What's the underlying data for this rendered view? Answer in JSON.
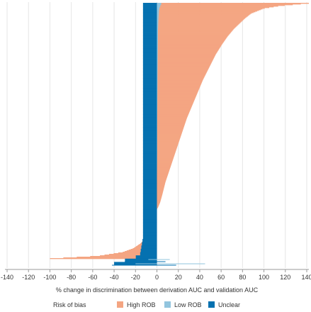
{
  "chart_data": {
    "type": "bar",
    "orientation": "horizontal",
    "sorted": "descending",
    "xlabel": "% change in discrimination between derivation AUC and validation AUC",
    "ylabel": "",
    "xlim": [
      -142,
      142
    ],
    "x_ticks": [
      -140,
      -120,
      -100,
      -80,
      -60,
      -40,
      -20,
      0,
      20,
      40,
      60,
      80,
      100,
      120,
      140
    ],
    "grid": "vertical",
    "legend": {
      "title": "Risk of bias",
      "placement": "bottom"
    },
    "series": [
      {
        "name": "High ROB",
        "color": "#f4a582",
        "profile": [
          [
            0.0,
            142
          ],
          [
            0.01,
            115
          ],
          [
            0.02,
            100
          ],
          [
            0.04,
            88
          ],
          [
            0.06,
            82
          ],
          [
            0.08,
            77
          ],
          [
            0.1,
            72
          ],
          [
            0.13,
            66
          ],
          [
            0.16,
            61
          ],
          [
            0.2,
            55
          ],
          [
            0.25,
            49
          ],
          [
            0.3,
            43
          ],
          [
            0.35,
            38
          ],
          [
            0.4,
            33
          ],
          [
            0.45,
            28
          ],
          [
            0.5,
            24
          ],
          [
            0.55,
            20
          ],
          [
            0.6,
            16
          ],
          [
            0.65,
            12
          ],
          [
            0.7,
            8
          ],
          [
            0.75,
            5
          ],
          [
            0.78,
            3
          ],
          [
            0.8,
            1
          ],
          [
            0.81,
            -1
          ],
          [
            0.83,
            -3
          ],
          [
            0.86,
            -5
          ],
          [
            0.89,
            -8
          ],
          [
            0.92,
            -11
          ],
          [
            0.94,
            -15
          ],
          [
            0.96,
            -22
          ],
          [
            0.975,
            -32
          ],
          [
            0.99,
            -55
          ],
          [
            1.0,
            -100
          ]
        ]
      },
      {
        "name": "Low ROB",
        "color": "#92c5de",
        "profile": [
          [
            0.0,
            4
          ],
          [
            0.02,
            2
          ],
          [
            0.05,
            1.5
          ],
          [
            0.1,
            1
          ],
          [
            0.3,
            0.6
          ],
          [
            0.5,
            0.2
          ],
          [
            0.7,
            -0.3
          ],
          [
            0.8,
            -0.6
          ],
          [
            0.88,
            -1
          ],
          [
            0.94,
            -2
          ],
          [
            0.97,
            -4
          ],
          [
            0.99,
            -10
          ],
          [
            1.0,
            -25
          ]
        ]
      },
      {
        "name": "Unclear",
        "color": "#0571b0",
        "profile": [
          [
            0.0,
            -13
          ],
          [
            0.1,
            -13
          ],
          [
            0.4,
            -13
          ],
          [
            0.7,
            -13
          ],
          [
            0.9,
            -13
          ],
          [
            0.97,
            -16
          ],
          [
            1.0,
            -40
          ]
        ]
      }
    ],
    "error_bars": [
      {
        "series": "Low ROB",
        "low": -20,
        "high": 45
      },
      {
        "series": "Low ROB",
        "low": -8,
        "high": 12
      },
      {
        "series": "Unclear",
        "low": -42,
        "high": 18
      },
      {
        "series": "Unclear",
        "low": -30,
        "high": 8
      }
    ]
  }
}
